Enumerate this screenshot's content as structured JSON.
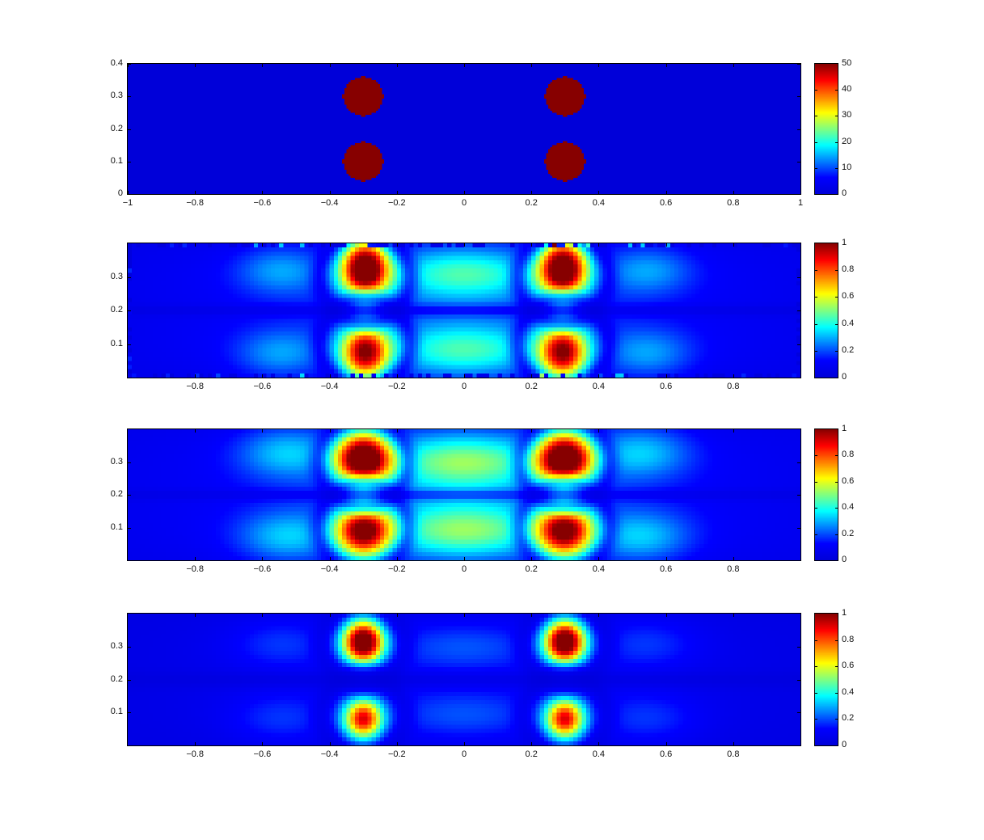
{
  "figure": {
    "background": "#ffffff",
    "axis_color": "#000000",
    "colormap": "jet",
    "colormap_anchors": {
      "zero": "#0000d9",
      "low": "#0000ff",
      "cyan": "#00ffff",
      "yellow": "#ffff00",
      "red": "#ff0000",
      "top": "#870000"
    }
  },
  "chart_data": [
    {
      "id": "source-map",
      "type": "heatmap",
      "colormap": "jet",
      "xlim": [
        -1,
        1
      ],
      "ylim": [
        0,
        0.4
      ],
      "x_ticks": {
        "values": [
          -1,
          -0.8,
          -0.6,
          -0.4,
          -0.2,
          0,
          0.2,
          0.4,
          0.6,
          0.8,
          1
        ],
        "labels": [
          "−1",
          "−0.8",
          "−0.6",
          "−0.4",
          "−0.2",
          "0",
          "0.2",
          "0.4",
          "0.6",
          "0.8",
          "1"
        ]
      },
      "y_ticks": {
        "values": [
          0,
          0.1,
          0.2,
          0.3,
          0.4
        ],
        "labels": [
          "0",
          "0.1",
          "0.2",
          "0.3",
          "0.4"
        ]
      },
      "colorbar": {
        "min": 0,
        "max": 50,
        "tick_values": [
          0,
          10,
          20,
          30,
          40,
          50
        ],
        "tick_labels": [
          "0",
          "10",
          "20",
          "30",
          "40",
          "50"
        ]
      },
      "grid": [
        320,
        64
      ],
      "field": {
        "background": 0,
        "disks": [
          {
            "x": -0.3,
            "y": 0.3,
            "r": 0.06,
            "value": 50
          },
          {
            "x": -0.3,
            "y": 0.1,
            "r": 0.06,
            "value": 50
          },
          {
            "x": 0.3,
            "y": 0.3,
            "r": 0.06,
            "value": 50
          },
          {
            "x": 0.3,
            "y": 0.1,
            "r": 0.06,
            "value": 50
          }
        ]
      }
    },
    {
      "id": "reconstruction-coarse",
      "type": "heatmap",
      "colormap": "jet",
      "xlim": [
        -1,
        1
      ],
      "ylim": [
        0,
        0.4
      ],
      "x_ticks": {
        "values": [
          -0.8,
          -0.6,
          -0.4,
          -0.2,
          0,
          0.2,
          0.4,
          0.6,
          0.8
        ],
        "labels": [
          "−0.8",
          "−0.6",
          "−0.4",
          "−0.2",
          "0",
          "0.2",
          "0.4",
          "0.6",
          "0.8"
        ]
      },
      "y_ticks": {
        "values": [
          0.1,
          0.2,
          0.3
        ],
        "labels": [
          "0.1",
          "0.2",
          "0.3"
        ]
      },
      "colorbar": {
        "min": 0,
        "max": 1,
        "tick_values": [
          0,
          0.2,
          0.4,
          0.6,
          0.8,
          1
        ],
        "tick_labels": [
          "0",
          "0.2",
          "0.4",
          "0.6",
          "0.8",
          "1"
        ]
      },
      "grid": [
        160,
        32
      ],
      "field": {
        "base": 0.05,
        "edge_noise": true,
        "lobes": [
          {
            "x": 0,
            "y": 0.3,
            "sx": 0.55,
            "sy": 0.085,
            "amp": 0.13
          },
          {
            "x": 0,
            "y": 0.1,
            "sx": 0.55,
            "sy": 0.085,
            "amp": 0.13
          },
          {
            "x": 0,
            "y": 0.31,
            "sx": 0.16,
            "sy": 0.055,
            "amp": 0.27
          },
          {
            "x": 0,
            "y": 0.08,
            "sx": 0.16,
            "sy": 0.055,
            "amp": 0.27
          },
          {
            "x": -0.55,
            "y": 0.32,
            "sx": 0.09,
            "sy": 0.05,
            "amp": 0.16
          },
          {
            "x": 0.55,
            "y": 0.32,
            "sx": 0.09,
            "sy": 0.05,
            "amp": 0.16
          },
          {
            "x": -0.55,
            "y": 0.07,
            "sx": 0.09,
            "sy": 0.05,
            "amp": 0.16
          },
          {
            "x": 0.55,
            "y": 0.07,
            "sx": 0.09,
            "sy": 0.05,
            "amp": 0.16
          }
        ],
        "hotspots": [
          {
            "x": -0.295,
            "y": 0.325,
            "sx": 0.05,
            "sy": 0.062,
            "amp": 1.0
          },
          {
            "x": 0.295,
            "y": 0.325,
            "sx": 0.05,
            "sy": 0.062,
            "amp": 1.0
          },
          {
            "x": -0.295,
            "y": 0.075,
            "sx": 0.05,
            "sy": 0.058,
            "amp": 0.82
          },
          {
            "x": 0.295,
            "y": 0.075,
            "sx": 0.05,
            "sy": 0.058,
            "amp": 0.82
          }
        ],
        "nodal_rings": [
          {
            "x": -0.295,
            "y": 0.3,
            "r": 0.135,
            "w": 0.02,
            "strength": 0.5
          },
          {
            "x": 0.295,
            "y": 0.3,
            "r": 0.135,
            "w": 0.02,
            "strength": 0.5
          },
          {
            "x": -0.295,
            "y": 0.1,
            "r": 0.135,
            "w": 0.02,
            "strength": 0.5
          },
          {
            "x": 0.295,
            "y": 0.1,
            "r": 0.135,
            "w": 0.02,
            "strength": 0.5
          }
        ],
        "nodal_lines": [
          {
            "y": 0.2,
            "w": 0.012,
            "strength": 0.5
          }
        ]
      }
    },
    {
      "id": "reconstruction-smooth",
      "type": "heatmap",
      "colormap": "jet",
      "xlim": [
        -1,
        1
      ],
      "ylim": [
        0,
        0.4
      ],
      "x_ticks": {
        "values": [
          -0.8,
          -0.6,
          -0.4,
          -0.2,
          0,
          0.2,
          0.4,
          0.6,
          0.8
        ],
        "labels": [
          "−0.8",
          "−0.6",
          "−0.4",
          "−0.2",
          "0",
          "0.2",
          "0.4",
          "0.6",
          "0.8"
        ]
      },
      "y_ticks": {
        "values": [
          0.1,
          0.2,
          0.3
        ],
        "labels": [
          "0.1",
          "0.2",
          "0.3"
        ]
      },
      "colorbar": {
        "min": 0,
        "max": 1,
        "tick_values": [
          0,
          0.2,
          0.4,
          0.6,
          0.8,
          1
        ],
        "tick_labels": [
          "0",
          "0.2",
          "0.4",
          "0.6",
          "0.8",
          "1"
        ]
      },
      "grid": [
        160,
        32
      ],
      "field": {
        "base": 0.05,
        "edge_noise": false,
        "lobes": [
          {
            "x": 0,
            "y": 0.3,
            "sx": 0.55,
            "sy": 0.09,
            "amp": 0.13
          },
          {
            "x": 0,
            "y": 0.1,
            "sx": 0.55,
            "sy": 0.09,
            "amp": 0.13
          },
          {
            "x": 0,
            "y": 0.3,
            "sx": 0.17,
            "sy": 0.06,
            "amp": 0.34
          },
          {
            "x": 0,
            "y": 0.09,
            "sx": 0.17,
            "sy": 0.06,
            "amp": 0.34
          },
          {
            "x": -0.53,
            "y": 0.33,
            "sx": 0.1,
            "sy": 0.055,
            "amp": 0.2
          },
          {
            "x": 0.53,
            "y": 0.33,
            "sx": 0.1,
            "sy": 0.055,
            "amp": 0.2
          },
          {
            "x": -0.53,
            "y": 0.07,
            "sx": 0.1,
            "sy": 0.055,
            "amp": 0.2
          },
          {
            "x": 0.53,
            "y": 0.07,
            "sx": 0.1,
            "sy": 0.055,
            "amp": 0.2
          }
        ],
        "hotspots": [
          {
            "x": -0.3,
            "y": 0.31,
            "sx": 0.057,
            "sy": 0.057,
            "amp": 1.0
          },
          {
            "x": 0.3,
            "y": 0.31,
            "sx": 0.057,
            "sy": 0.057,
            "amp": 1.0
          },
          {
            "x": -0.3,
            "y": 0.09,
            "sx": 0.057,
            "sy": 0.057,
            "amp": 0.85
          },
          {
            "x": 0.3,
            "y": 0.09,
            "sx": 0.057,
            "sy": 0.057,
            "amp": 0.85
          }
        ],
        "nodal_rings": [
          {
            "x": -0.3,
            "y": 0.3,
            "r": 0.135,
            "w": 0.02,
            "strength": 0.45
          },
          {
            "x": 0.3,
            "y": 0.3,
            "r": 0.135,
            "w": 0.02,
            "strength": 0.45
          },
          {
            "x": -0.3,
            "y": 0.1,
            "r": 0.135,
            "w": 0.02,
            "strength": 0.45
          },
          {
            "x": 0.3,
            "y": 0.1,
            "r": 0.135,
            "w": 0.02,
            "strength": 0.45
          }
        ],
        "nodal_lines": [
          {
            "y": 0.2,
            "w": 0.012,
            "strength": 0.45
          }
        ]
      }
    },
    {
      "id": "reconstruction-sparse",
      "type": "heatmap",
      "colormap": "jet",
      "xlim": [
        -1,
        1
      ],
      "ylim": [
        0,
        0.4
      ],
      "x_ticks": {
        "values": [
          -0.8,
          -0.6,
          -0.4,
          -0.2,
          0,
          0.2,
          0.4,
          0.6,
          0.8
        ],
        "labels": [
          "−0.8",
          "−0.6",
          "−0.4",
          "−0.2",
          "0",
          "0.2",
          "0.4",
          "0.6",
          "0.8"
        ]
      },
      "y_ticks": {
        "values": [
          0.1,
          0.2,
          0.3
        ],
        "labels": [
          "0.1",
          "0.2",
          "0.3"
        ]
      },
      "colorbar": {
        "min": 0,
        "max": 1,
        "tick_values": [
          0,
          0.2,
          0.4,
          0.6,
          0.8,
          1
        ],
        "tick_labels": [
          "0",
          "0.2",
          "0.4",
          "0.6",
          "0.8",
          "1"
        ]
      },
      "grid": [
        160,
        32
      ],
      "field": {
        "base": 0.03,
        "edge_noise": false,
        "lobes": [
          {
            "x": 0,
            "y": 0.3,
            "sx": 0.55,
            "sy": 0.09,
            "amp": 0.07
          },
          {
            "x": 0,
            "y": 0.1,
            "sx": 0.55,
            "sy": 0.09,
            "amp": 0.07
          },
          {
            "x": 0,
            "y": 0.3,
            "sx": 0.16,
            "sy": 0.05,
            "amp": 0.1
          },
          {
            "x": 0,
            "y": 0.09,
            "sx": 0.16,
            "sy": 0.05,
            "amp": 0.1
          },
          {
            "x": -0.55,
            "y": 0.31,
            "sx": 0.11,
            "sy": 0.055,
            "amp": 0.1
          },
          {
            "x": 0.55,
            "y": 0.31,
            "sx": 0.11,
            "sy": 0.055,
            "amp": 0.1
          },
          {
            "x": -0.55,
            "y": 0.08,
            "sx": 0.11,
            "sy": 0.055,
            "amp": 0.1
          },
          {
            "x": 0.55,
            "y": 0.08,
            "sx": 0.11,
            "sy": 0.055,
            "amp": 0.1
          }
        ],
        "hotspots": [
          {
            "x": -0.3,
            "y": 0.315,
            "sx": 0.043,
            "sy": 0.047,
            "amp": 1.05
          },
          {
            "x": 0.3,
            "y": 0.315,
            "sx": 0.043,
            "sy": 0.047,
            "amp": 1.05
          },
          {
            "x": -0.3,
            "y": 0.08,
            "sx": 0.041,
            "sy": 0.044,
            "amp": 0.8
          },
          {
            "x": 0.3,
            "y": 0.08,
            "sx": 0.041,
            "sy": 0.044,
            "amp": 0.8
          }
        ],
        "nodal_rings": [
          {
            "x": -0.3,
            "y": 0.31,
            "r": 0.125,
            "w": 0.022,
            "strength": 0.5
          },
          {
            "x": 0.3,
            "y": 0.31,
            "r": 0.125,
            "w": 0.022,
            "strength": 0.5
          },
          {
            "x": -0.3,
            "y": 0.09,
            "r": 0.125,
            "w": 0.022,
            "strength": 0.5
          },
          {
            "x": 0.3,
            "y": 0.09,
            "r": 0.125,
            "w": 0.022,
            "strength": 0.5
          }
        ],
        "nodal_lines": [
          {
            "y": 0.2,
            "w": 0.018,
            "strength": 0.55
          }
        ]
      }
    }
  ]
}
